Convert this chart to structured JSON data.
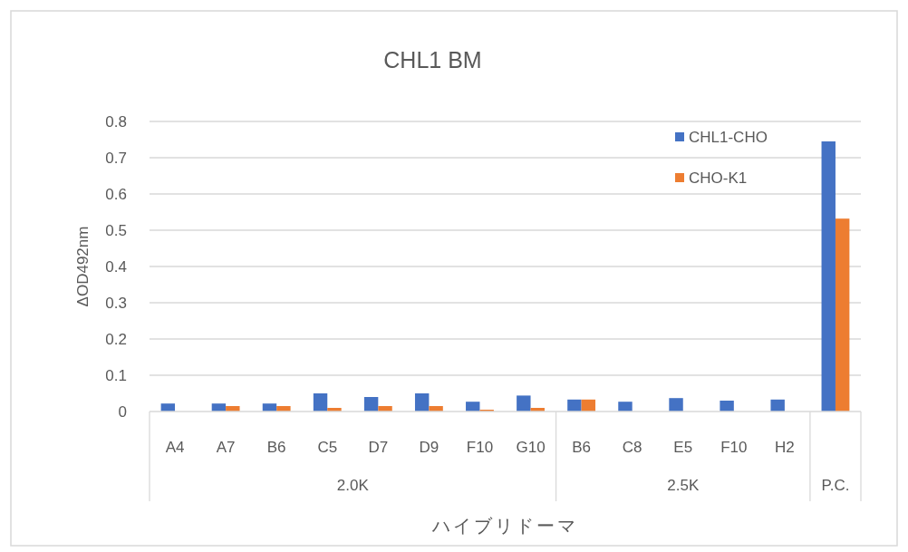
{
  "chart_data": {
    "type": "bar",
    "title": "CHL1 BM",
    "xlabel": "ハイブリドーマ",
    "ylabel": "ΔOD492nm",
    "categories": [
      "A4",
      "A7",
      "B6",
      "C5",
      "D7",
      "D9",
      "F10",
      "G10",
      "B6",
      "C8",
      "E5",
      "F10",
      "H2",
      null
    ],
    "series": [
      {
        "name": "CHL1-CHO",
        "color": "#4472c4",
        "values": [
          0.022,
          0.022,
          0.022,
          0.05,
          0.04,
          0.05,
          0.027,
          0.044,
          0.033,
          0.027,
          0.037,
          0.03,
          0.033,
          0.745
        ]
      },
      {
        "name": "CHO-K1",
        "color": "#ed7d31",
        "values": [
          0,
          0.015,
          0.015,
          0.01,
          0.015,
          0.015,
          0.005,
          0.01,
          0.033,
          0,
          0,
          0,
          0,
          0.532
        ]
      }
    ],
    "ylim": [
      0,
      0.8
    ],
    "yticks": [
      0,
      0.1,
      0.2,
      0.3,
      0.4,
      0.5,
      0.6,
      0.7,
      0.8
    ],
    "grid": "y",
    "legend": "top right",
    "annotations": [
      "2.0K",
      "2.5K",
      "P.C."
    ]
  }
}
